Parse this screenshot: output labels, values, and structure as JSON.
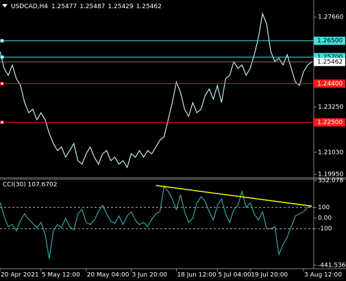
{
  "chart_data": [
    {
      "type": "line",
      "symbol": "USDCAD,H4",
      "ohlc": [
        1.25477,
        1.25487,
        1.25429,
        1.25462
      ],
      "categories": [
        "20 Apr 2021",
        null,
        null,
        null,
        null,
        null,
        null,
        null,
        null,
        null,
        "5 May 12:00",
        null,
        null,
        null,
        null,
        null,
        null,
        null,
        null,
        null,
        null,
        "20 May 04:00",
        null,
        null,
        null,
        null,
        null,
        null,
        null,
        null,
        null,
        null,
        "3 Jun 20:00",
        null,
        null,
        null,
        null,
        null,
        null,
        null,
        null,
        null,
        null,
        "18 Jun 12:00",
        null,
        null,
        null,
        null,
        null,
        null,
        null,
        null,
        null,
        "5 Jul 04:00",
        null,
        null,
        null,
        null,
        null,
        null,
        null,
        "19 Jul 20:00",
        null,
        null,
        null,
        null,
        null,
        null,
        null,
        null,
        null,
        null,
        null,
        null,
        "3 Aug 12:00",
        null,
        null
      ],
      "series": [
        {
          "color": "#c8f0f0",
          "values": [
            1.2598,
            1.2515,
            1.2481,
            1.2531,
            1.2464,
            1.2431,
            1.2347,
            1.2297,
            1.2314,
            1.2263,
            1.2297,
            1.2263,
            1.2196,
            1.2146,
            1.2112,
            1.2129,
            1.2079,
            1.2112,
            1.2146,
            1.2062,
            1.2045,
            1.2096,
            1.2129,
            1.2079,
            1.2045,
            1.2096,
            1.2112,
            1.2062,
            1.2079,
            1.2045,
            1.2062,
            1.2029,
            1.2096,
            1.2079,
            1.2112,
            1.2079,
            1.2112,
            1.2096,
            1.2129,
            1.2163,
            1.2179,
            1.2263,
            1.2347,
            1.2448,
            1.2397,
            1.2314,
            1.228,
            1.2347,
            1.2297,
            1.2314,
            1.2381,
            1.2414,
            1.2364,
            1.2431,
            1.2347,
            1.2464,
            1.2481,
            1.2548,
            1.2515,
            1.2531,
            1.2481,
            1.2515,
            1.2582,
            1.2665,
            1.2783,
            1.2733,
            1.2598,
            1.2548,
            1.2565,
            1.2531,
            1.2582,
            1.2515,
            1.2448,
            1.2431,
            1.2498,
            1.2531,
            1.2546
          ]
        }
      ],
      "ylim": [
        1.1985,
        1.285
      ],
      "yticks": [
        {
          "value": 1.2766,
          "label": "1.27660"
        },
        {
          "value": 1.2325,
          "label": "1.23250"
        },
        {
          "value": 1.2103,
          "label": "1.21030"
        },
        {
          "value": 1.1995,
          "label": "1.19950"
        }
      ],
      "levels": [
        {
          "value": 1.265,
          "label": "1.26500",
          "color": "#40e0e0"
        },
        {
          "value": 1.257,
          "label": "1.25700",
          "color": "#40e0e0"
        },
        {
          "value": 1.244,
          "label": "1.24400",
          "color": "#ff1a1a"
        },
        {
          "value": 1.225,
          "label": "1.22500",
          "color": "#ff1a1a"
        }
      ],
      "current_price": {
        "value": 1.25462,
        "label": "1.25462"
      }
    },
    {
      "type": "line",
      "title": "CCI(30) 107.6702",
      "series": [
        {
          "color": "#3aa6a6",
          "values": [
            150,
            20,
            -80,
            -60,
            -120,
            -20,
            40,
            -10,
            -50,
            -90,
            -40,
            -150,
            -380,
            -120,
            -60,
            -90,
            0,
            -80,
            -110,
            40,
            80,
            -40,
            -60,
            -20,
            60,
            120,
            40,
            -30,
            -50,
            20,
            -60,
            20,
            60,
            -20,
            -60,
            -40,
            -80,
            -10,
            40,
            60,
            300,
            250,
            180,
            80,
            220,
            60,
            -40,
            0,
            140,
            200,
            160,
            60,
            -20,
            120,
            180,
            40,
            -40,
            80,
            120,
            250,
            100,
            140,
            40,
            -20,
            60,
            -100,
            -100,
            -80,
            -340,
            -250,
            -180,
            -80,
            20,
            40,
            60,
            100,
            108
          ]
        }
      ],
      "ylim": [
        -441.5364,
        352.078
      ],
      "yticks": [
        352.078,
        100,
        {
          "value": 0,
          "label": "0.00"
        },
        -100,
        -441.5364
      ],
      "levels": [
        100,
        -100
      ],
      "trendline": {
        "color": "#ffff00",
        "x": [
          38,
          76
        ],
        "y": [
          306,
          112
        ]
      }
    }
  ]
}
